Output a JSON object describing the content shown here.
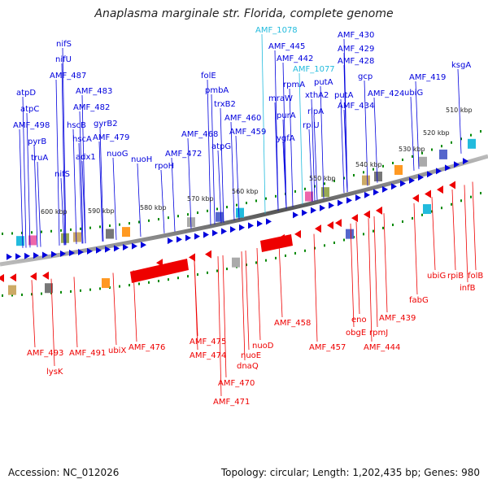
{
  "title": "Anaplasma marginale str. Florida, complete genome",
  "footer": {
    "accession": "Accession: NC_012026",
    "summary": "Topology: circular; Length: 1,202,435 bp; Genes: 980"
  },
  "colors": {
    "forward": "#0000dd",
    "reverse": "#ee0000",
    "highlight": "#22bbdd",
    "backbone": "#888888",
    "tick": "#008800"
  },
  "kbp_labels": [
    "510 kbp",
    "520 kbp",
    "530 kbp",
    "540 kbp",
    "550 kbp",
    "560 kbp",
    "570 kbp",
    "580 kbp",
    "590 kbp",
    "600 kbp"
  ],
  "forward_labels": [
    "ksgA",
    "AMF_419",
    "ubiG",
    "AMF_424",
    "AMF_428",
    "AMF_429",
    "AMF_430",
    "AMF_434",
    "putA",
    "gcp",
    "AMF_1077",
    "AMF_1078",
    "AMF_445",
    "AMF_442",
    "putA",
    "xthA2",
    "rlpA",
    "rpmA",
    "rplU",
    "mraW",
    "purA",
    "ygfA",
    "folE",
    "pmbA",
    "trxB2",
    "AMF_460",
    "AMF_459",
    "AMF_468",
    "atpG",
    "AMF_472",
    "rpoH",
    "nuoH",
    "AMF_479",
    "nuoG",
    "gyrB2",
    "AMF_482",
    "AMF_483",
    "AMF_487",
    "nifU",
    "nifS",
    "hscB",
    "hscA",
    "adx1",
    "AMF_498",
    "atpC",
    "atpD",
    "pyrB",
    "truA",
    "nifS"
  ],
  "reverse_labels": [
    "folB",
    "rpiB",
    "infB",
    "ubiG",
    "fabG",
    "AMF_439",
    "AMF_444",
    "rpmJ",
    "obgE",
    "eno",
    "AMF_457",
    "AMF_458",
    "nuoD",
    "nuoE",
    "dnaQ",
    "AMF_470",
    "AMF_471",
    "AMF_474",
    "AMF_475",
    "AMF_476",
    "ubiX",
    "AMF_491",
    "AMF_493",
    "lysK"
  ]
}
